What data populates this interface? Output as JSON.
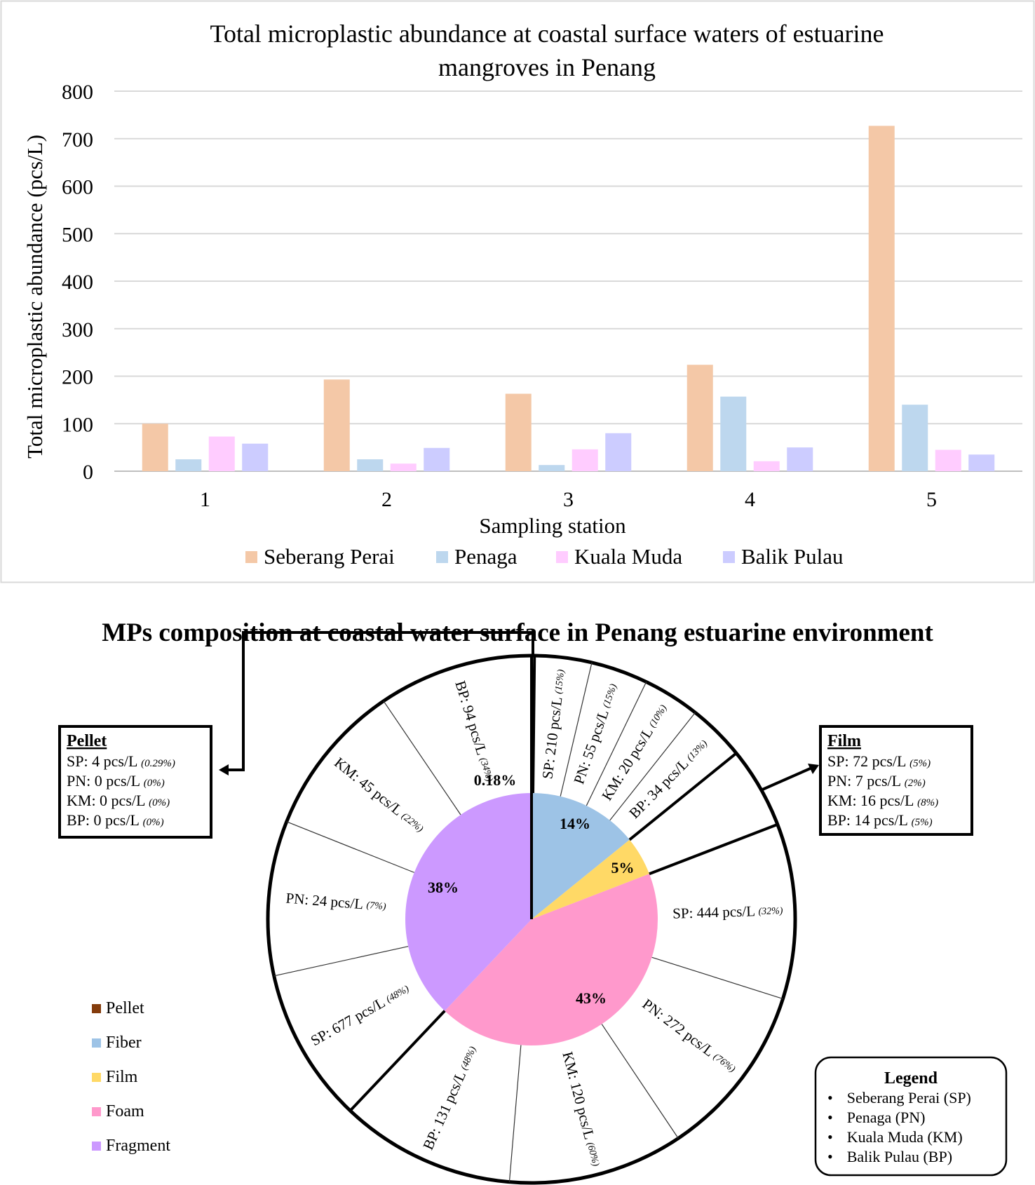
{
  "chart_data": [
    {
      "type": "bar",
      "title": "Total microplastic abundance at coastal surface waters of estuarine mangroves in Penang",
      "title_lines": [
        "Total microplastic abundance at coastal surface waters of estuarine",
        "mangroves in Penang"
      ],
      "xlabel": "Sampling station",
      "ylabel": "Total microplastic abundance (pcs/L)",
      "ylim": [
        0,
        800
      ],
      "yticks": [
        "0",
        "100",
        "200",
        "300",
        "400",
        "500",
        "600",
        "700",
        "800"
      ],
      "categories": [
        "1",
        "2",
        "3",
        "4",
        "5"
      ],
      "grid": true,
      "legend_position": "bottom",
      "series": [
        {
          "name": "Seberang Perai",
          "color": "#F4C8A7",
          "values": [
            100,
            193,
            163,
            224,
            727
          ]
        },
        {
          "name": "Penaga",
          "color": "#BDD7EE",
          "values": [
            25,
            25,
            13,
            157,
            140
          ]
        },
        {
          "name": "Kuala Muda",
          "color": "#FFCCFF",
          "values": [
            73,
            16,
            46,
            21,
            45
          ]
        },
        {
          "name": "Balik Pulau",
          "color": "#CCCCFF",
          "values": [
            58,
            49,
            80,
            50,
            35
          ]
        }
      ]
    },
    {
      "type": "pie",
      "title": "MPs composition at coastal water surface in Penang estuarine environment",
      "categories": [
        {
          "name": "Pellet",
          "color": "#843C0C",
          "percent": 0.18,
          "label": "0.18%"
        },
        {
          "name": "Fiber",
          "color": "#9DC3E6",
          "percent": 14,
          "label": "14%"
        },
        {
          "name": "Film",
          "color": "#FFD966",
          "percent": 5,
          "label": "5%"
        },
        {
          "name": "Foam",
          "color": "#FF99CC",
          "percent": 43,
          "label": "43%"
        },
        {
          "name": "Fragment",
          "color": "#CC99FF",
          "percent": 38,
          "label": "38%"
        }
      ],
      "outer_ring_labels": {
        "Fiber": [
          {
            "text": "SP: 210 pcs/L",
            "pct": "(15%)"
          },
          {
            "text": "PN: 55 pcs/L",
            "pct": "(15%)"
          },
          {
            "text": "KM: 20 pcs/L",
            "pct": "(10%)"
          },
          {
            "text": "BP: 34 pcs/L",
            "pct": "(13%)"
          }
        ],
        "Foam": [
          {
            "text": "SP: 444 pcs/L",
            "pct": "(32%)"
          },
          {
            "text": "PN: 272 pcs/L",
            "pct": "(76%)"
          },
          {
            "text": "KM: 120 pcs/L",
            "pct": "(60%)"
          },
          {
            "text": "BP: 131 pcs/L",
            "pct": "(48%)"
          }
        ],
        "Fragment": [
          {
            "text": "SP: 677 pcs/L",
            "pct": "(48%)"
          },
          {
            "text": "PN: 24 pcs/L",
            "pct": "(7%)"
          },
          {
            "text": "KM: 45 pcs/L",
            "pct": "(22%)"
          },
          {
            "text": "BP: 94 pcs/L",
            "pct": "(34%)"
          }
        ]
      },
      "callouts": {
        "Pellet": {
          "title": "Pellet",
          "lines": [
            {
              "text": "SP: 4 pcs/L",
              "pct": "(0.29%)"
            },
            {
              "text": "PN: 0 pcs/L",
              "pct": "(0%)"
            },
            {
              "text": "KM: 0 pcs/L",
              "pct": "(0%)"
            },
            {
              "text": "BP: 0 pcs/L",
              "pct": "(0%)"
            }
          ]
        },
        "Film": {
          "title": "Film",
          "lines": [
            {
              "text": "SP: 72 pcs/L",
              "pct": "(5%)"
            },
            {
              "text": "PN: 7 pcs/L",
              "pct": "(2%)"
            },
            {
              "text": "KM: 16 pcs/L",
              "pct": "(8%)"
            },
            {
              "text": "BP: 14 pcs/L",
              "pct": "(5%)"
            }
          ]
        }
      },
      "legend_box": {
        "title": "Legend",
        "items": [
          "Seberang Perai (SP)",
          "Penaga (PN)",
          "Kuala Muda (KM)",
          "Balik Pulau (BP)"
        ]
      }
    }
  ]
}
